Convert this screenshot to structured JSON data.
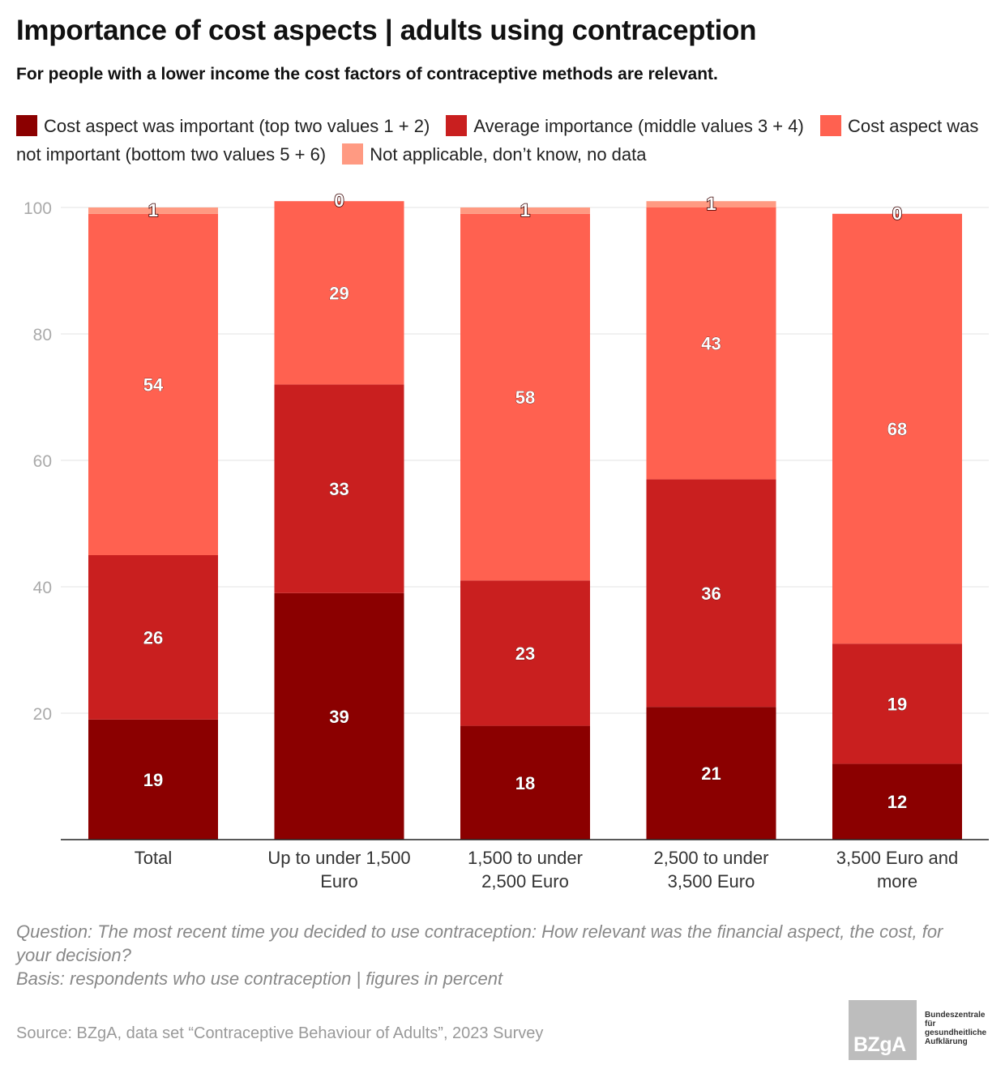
{
  "header": {
    "title": "Importance of cost aspects | adults using contraception",
    "subtitle": "For people with a lower income the cost factors of contraceptive methods are relevant."
  },
  "legend": {
    "items": [
      {
        "label": "Cost aspect was important (top two values 1 + 2)",
        "color": "#8b0000"
      },
      {
        "label": "Average importance (middle values 3 + 4)",
        "color": "#c91f1f"
      },
      {
        "label": "Cost aspect was not important (bottom two values 5 + 6)",
        "color": "#ff6150"
      },
      {
        "label": "Not applicable, don’t know, no data",
        "color": "#ff9a82"
      }
    ]
  },
  "chart_data": {
    "type": "bar",
    "stacked": true,
    "categories": [
      "Total",
      "Up to under 1,500 Euro",
      "1,500 to under 2,500 Euro",
      "2,500 to under 3,500 Euro",
      "3,500 Euro and more"
    ],
    "category_lines": [
      [
        "Total"
      ],
      [
        "Up to under 1,500",
        "Euro"
      ],
      [
        "1,500 to under",
        "2,500 Euro"
      ],
      [
        "2,500 to under",
        "3,500 Euro"
      ],
      [
        "3,500 Euro and",
        "more"
      ]
    ],
    "series": [
      {
        "name": "Cost aspect was important (top two values 1 + 2)",
        "color": "#8b0000",
        "values": [
          19,
          39,
          18,
          21,
          12
        ]
      },
      {
        "name": "Average importance (middle values 3 + 4)",
        "color": "#c91f1f",
        "values": [
          26,
          33,
          23,
          36,
          19
        ]
      },
      {
        "name": "Cost aspect was not important (bottom two values 5 + 6)",
        "color": "#ff6150",
        "values": [
          54,
          29,
          58,
          43,
          68
        ]
      },
      {
        "name": "Not applicable, don’t know, no data",
        "color": "#ff9a82",
        "values": [
          1,
          0,
          1,
          1,
          0
        ]
      }
    ],
    "ylim": [
      0,
      100
    ],
    "yticks": [
      20,
      40,
      60,
      80,
      100
    ],
    "grid": true,
    "unit": "percent"
  },
  "footer": {
    "question": "Question: The most recent time you decided to use contraception: How relevant was the financial aspect, the cost, for your decision?",
    "basis": "Basis: respondents who use contraception | figures in percent",
    "source": "Source: BZgA, data set “Contraceptive Behaviour of Adults”, 2023 Survey"
  },
  "logo": {
    "mark": "BZgA",
    "text_lines": [
      "Bundeszentrale",
      "für",
      "gesundheitliche",
      "Aufklärung"
    ]
  }
}
